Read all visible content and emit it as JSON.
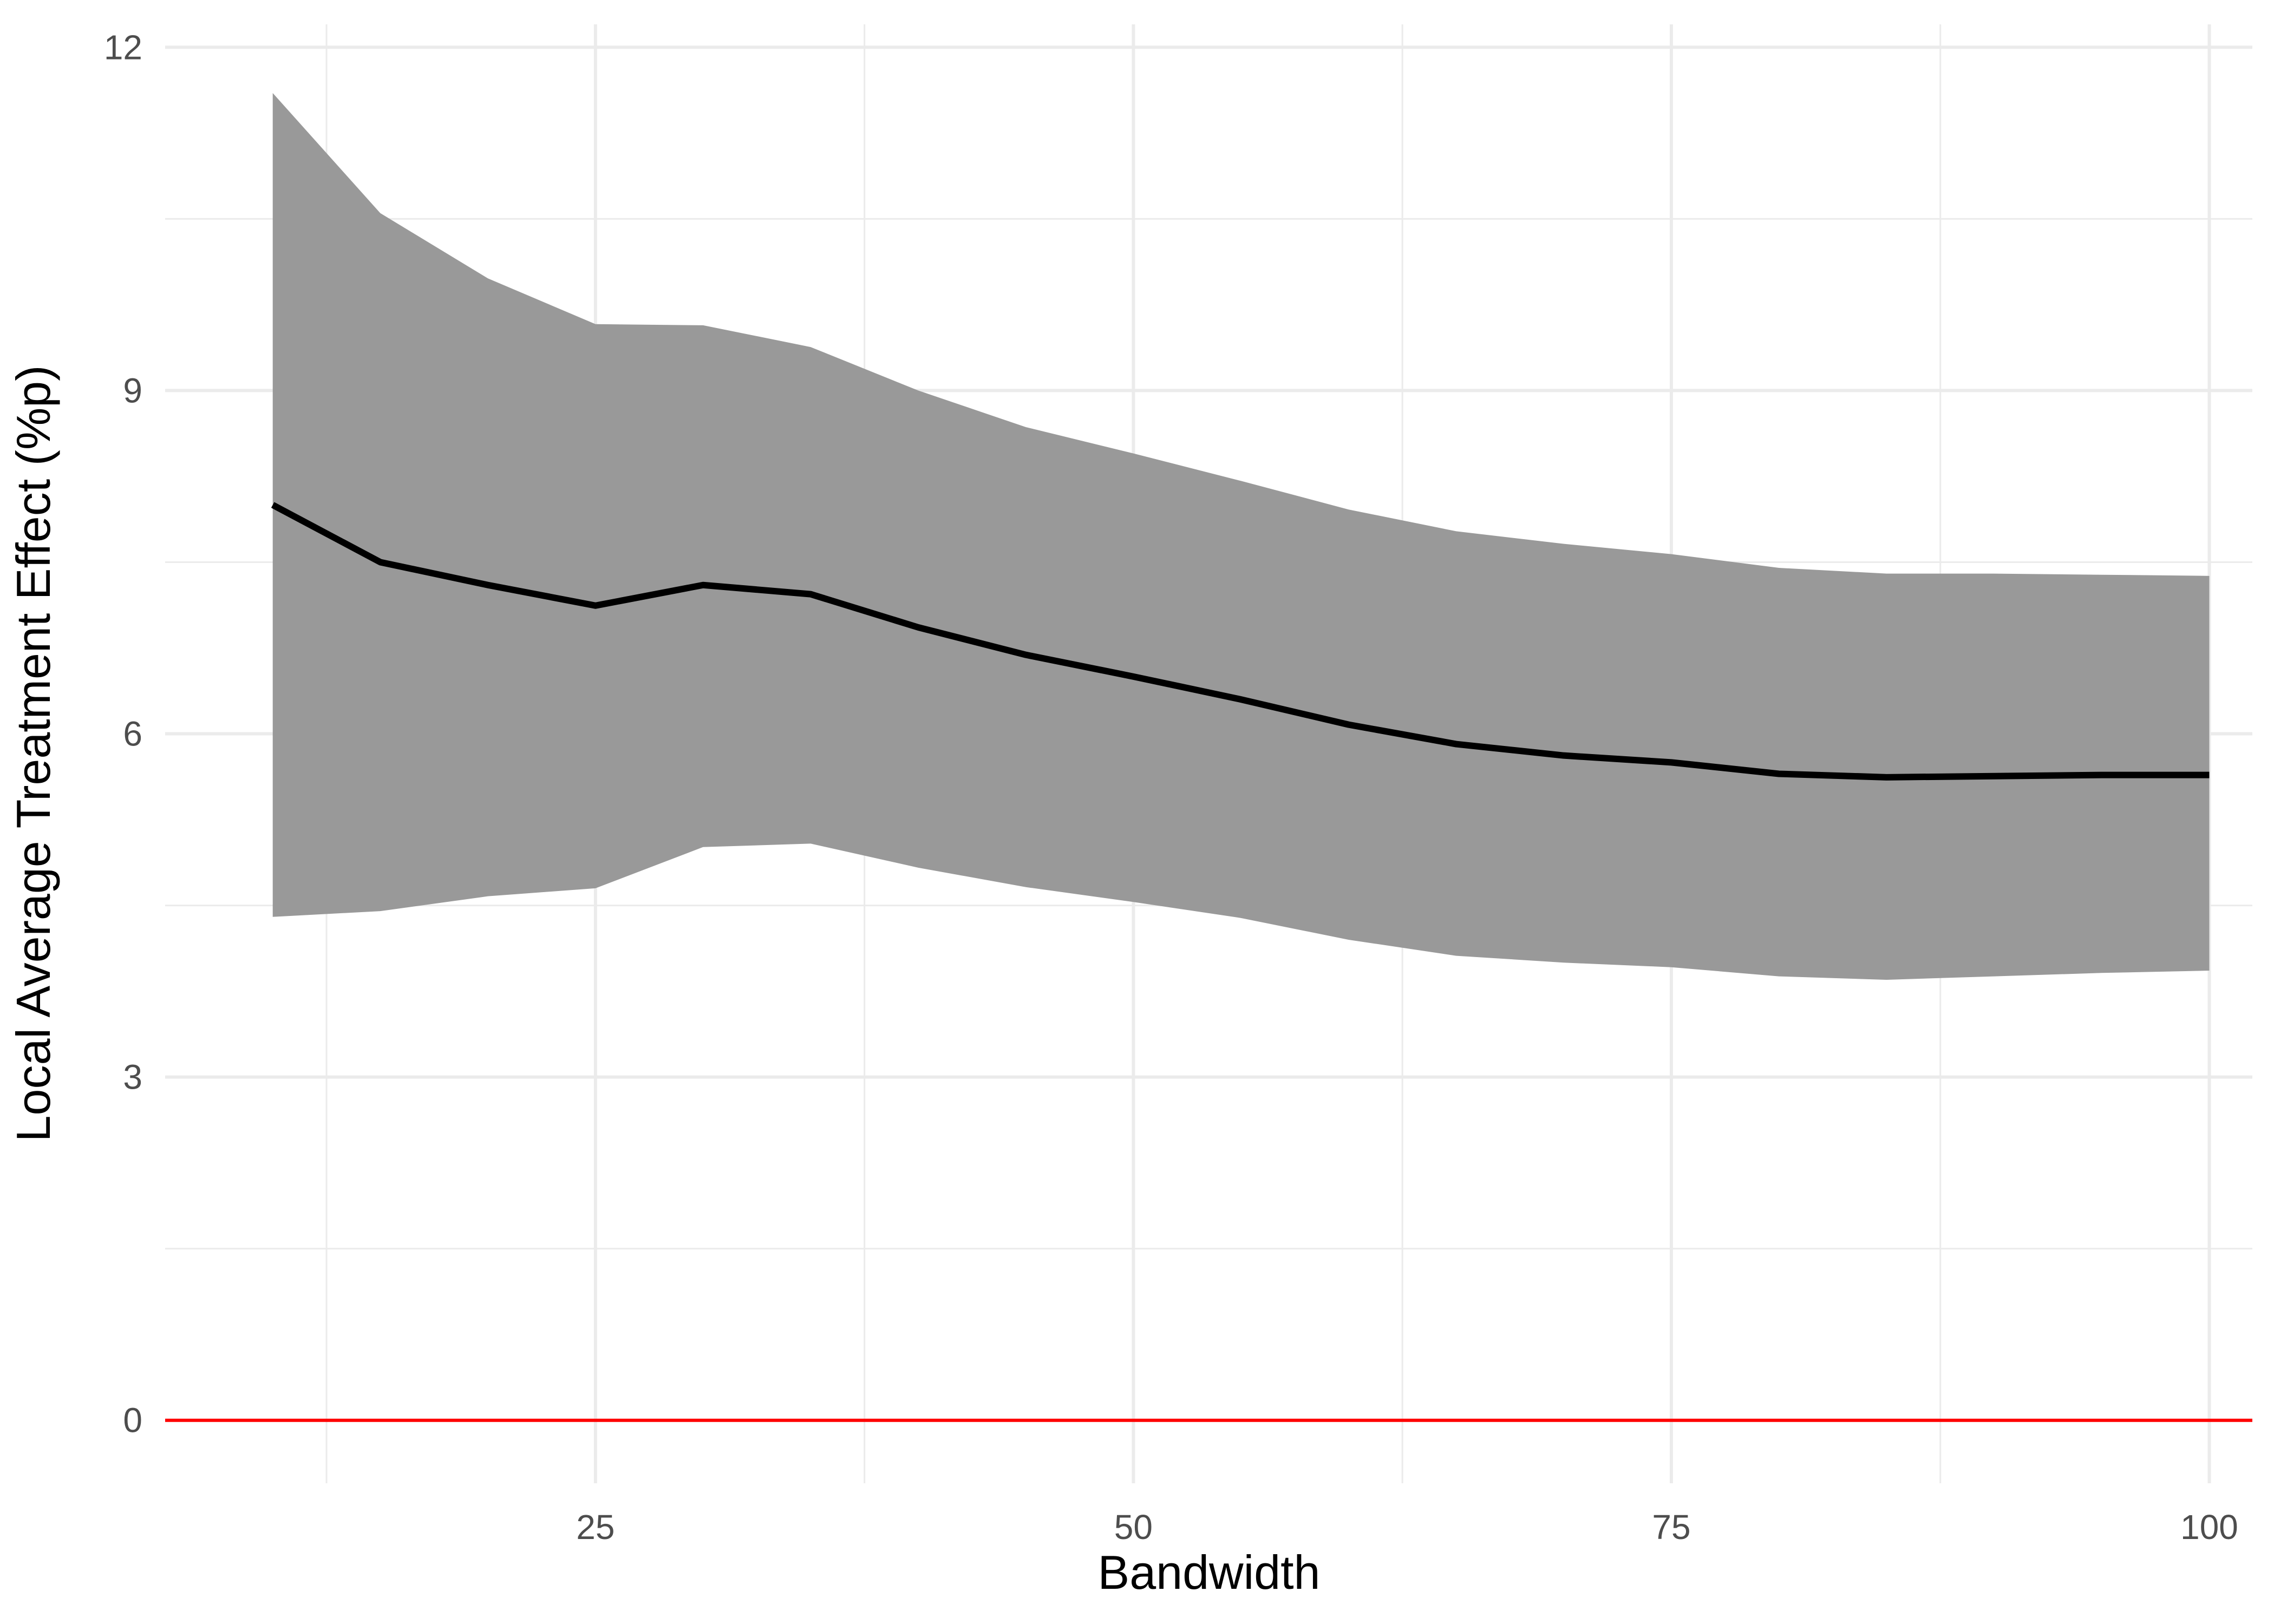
{
  "chart_data": {
    "type": "line",
    "title": "",
    "xlabel": "Bandwidth",
    "ylabel": "Local Average Treatment Effect (%p)",
    "xlim": [
      5,
      102
    ],
    "ylim": [
      -0.55,
      12.2
    ],
    "x_ticks": [
      25,
      50,
      75,
      100
    ],
    "x_tick_labels": [
      "25",
      "50",
      "75",
      "100"
    ],
    "x_minor": [
      12.5,
      37.5,
      62.5,
      87.5
    ],
    "y_ticks": [
      0,
      3,
      6,
      9,
      12
    ],
    "y_tick_labels": [
      "0",
      "3",
      "6",
      "9",
      "12"
    ],
    "y_minor": [
      1.5,
      4.5,
      7.5,
      10.5
    ],
    "grid": true,
    "legend": "none",
    "x": [
      10,
      15,
      20,
      25,
      30,
      35,
      40,
      45,
      50,
      55,
      60,
      65,
      70,
      75,
      80,
      85,
      90,
      95,
      100
    ],
    "series": [
      {
        "values": [
          8.0,
          7.5,
          7.3,
          7.12,
          7.3,
          7.22,
          6.93,
          6.69,
          6.5,
          6.3,
          6.08,
          5.91,
          5.81,
          5.75,
          5.65,
          5.62,
          5.63,
          5.64,
          5.64
        ],
        "lower": [
          4.4,
          4.45,
          4.58,
          4.65,
          5.01,
          5.04,
          4.83,
          4.66,
          4.53,
          4.39,
          4.2,
          4.06,
          4.0,
          3.96,
          3.88,
          3.85,
          3.88,
          3.91,
          3.93
        ],
        "upper": [
          11.6,
          10.55,
          9.98,
          9.58,
          9.57,
          9.38,
          9.0,
          8.68,
          8.45,
          8.21,
          7.96,
          7.77,
          7.66,
          7.57,
          7.45,
          7.4,
          7.4,
          7.39,
          7.38
        ]
      }
    ],
    "reference_line": {
      "y": 0,
      "color": "#ff0000"
    },
    "colors": {
      "line": "#000000",
      "band": "#999999",
      "grid": "#ebebeb"
    }
  }
}
